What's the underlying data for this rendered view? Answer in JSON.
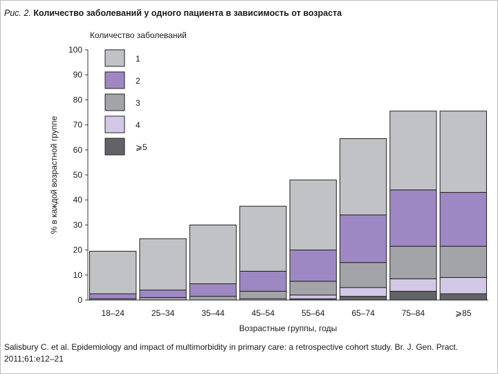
{
  "figure": {
    "label": "Рис. 2.",
    "title": "Количество заболеваний у одного пациента в зависимость от возраста"
  },
  "source": {
    "text": "Salisbury C. et al. Epidemiology and impact of multimorbidity in primary care: a retrospective cohort study. Br. J. Gen. Pract. 2011;61:e12–21"
  },
  "chart_data": {
    "type": "bar",
    "stacked": true,
    "title": "Количество заболеваний у одного пациента в зависимость от возраста",
    "xlabel": "Возрастные группы, годы",
    "ylabel": "% в каждой возрастной группе",
    "ylim": [
      0,
      100
    ],
    "yticks": [
      0,
      10,
      20,
      30,
      40,
      50,
      60,
      70,
      80,
      90,
      100
    ],
    "legend_title": "Количество заболеваний",
    "legend_position": "top-left",
    "categories": [
      "18–24",
      "25–34",
      "35–44",
      "45–54",
      "55–64",
      "65–74",
      "75–84",
      "⩾85"
    ],
    "series": [
      {
        "name": "⩾5",
        "color": "#626366",
        "values": [
          0,
          0,
          0,
          0,
          0.5,
          1.5,
          3.5,
          2.5
        ]
      },
      {
        "name": "4",
        "color": "#d3c8e6",
        "values": [
          0,
          0,
          0,
          0.5,
          1.5,
          3.5,
          5.0,
          6.5
        ]
      },
      {
        "name": "3",
        "color": "#a3a4a7",
        "values": [
          0.5,
          1.0,
          1.5,
          3.0,
          5.5,
          10.0,
          13.0,
          12.5
        ]
      },
      {
        "name": "2",
        "color": "#9e88c3",
        "values": [
          2.0,
          3.0,
          5.0,
          8.0,
          12.5,
          19.0,
          22.5,
          21.5
        ]
      },
      {
        "name": "1",
        "color": "#c1c2c5",
        "values": [
          17.0,
          20.5,
          23.5,
          26.0,
          28.0,
          30.5,
          31.5,
          32.5
        ]
      }
    ],
    "legend_order": [
      "1",
      "2",
      "3",
      "4",
      "⩾5"
    ]
  }
}
